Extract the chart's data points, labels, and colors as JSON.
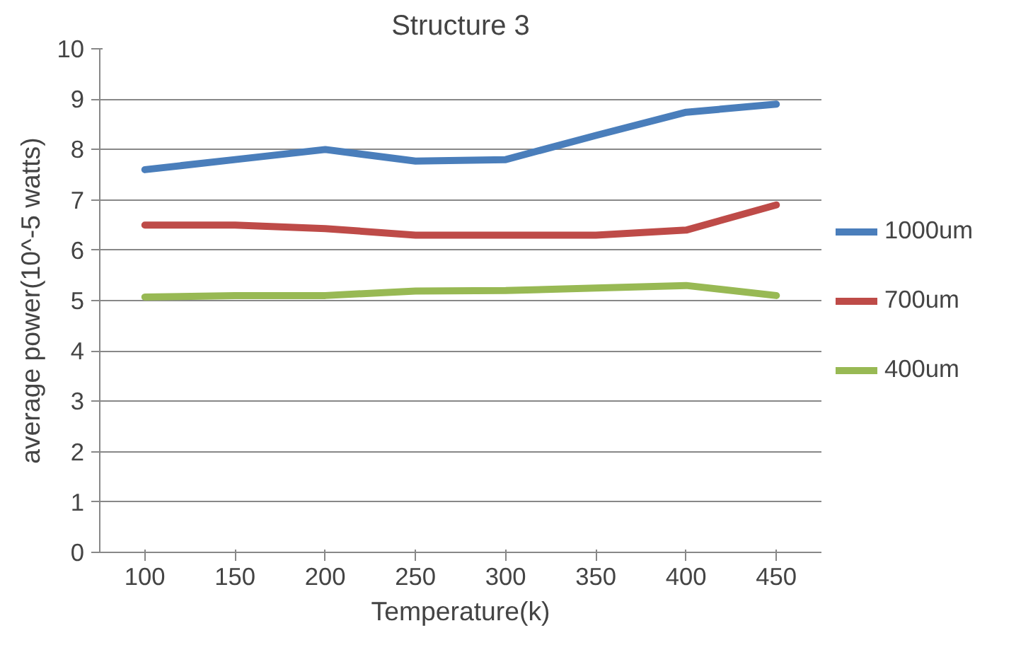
{
  "chart_data": {
    "type": "line",
    "title": "Structure 3",
    "xlabel": "Temperature(k)",
    "ylabel": "average power(10^-5 watts)",
    "categories": [
      "100",
      "150",
      "200",
      "250",
      "300",
      "350",
      "400",
      "450"
    ],
    "series": [
      {
        "name": "1000um",
        "color": "#4a7ebb",
        "values": [
          7.6,
          7.8,
          8.0,
          7.77,
          7.8,
          8.28,
          8.74,
          8.9
        ]
      },
      {
        "name": "700um",
        "color": "#be4b48",
        "values": [
          6.5,
          6.5,
          6.43,
          6.3,
          6.3,
          6.3,
          6.4,
          6.9
        ]
      },
      {
        "name": "400um",
        "color": "#98b954",
        "values": [
          5.07,
          5.1,
          5.1,
          5.19,
          5.2,
          5.25,
          5.3,
          5.1
        ]
      }
    ],
    "ylim": [
      0,
      10
    ],
    "yticks": [
      0,
      1,
      2,
      3,
      4,
      5,
      6,
      7,
      8,
      9,
      10
    ],
    "grid": "y",
    "legend": "right",
    "marker": "none",
    "line_style": "solid"
  }
}
